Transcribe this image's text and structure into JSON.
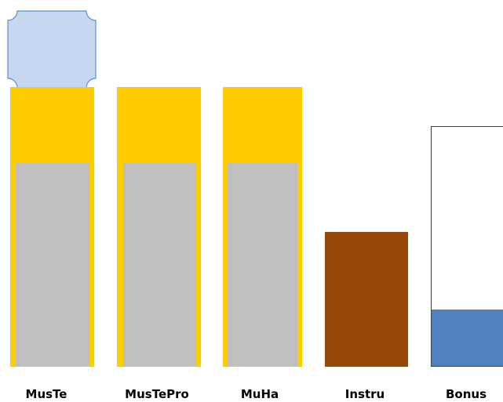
{
  "colors": {
    "gold": "#FFCC00",
    "gray": "#BFBFBF",
    "brown": "#994706",
    "blue": "#4F81BD",
    "badge_fill": "#C6D9F1",
    "badge_stroke": "#5B8FD0",
    "outline": "#404040"
  },
  "badge": {
    "icon": "plaque-icon"
  },
  "columns": [
    {
      "label": "MusTe"
    },
    {
      "label": "MusTePro"
    },
    {
      "label": "MuHa"
    },
    {
      "label": "Instru"
    },
    {
      "label": "Bonus"
    }
  ]
}
